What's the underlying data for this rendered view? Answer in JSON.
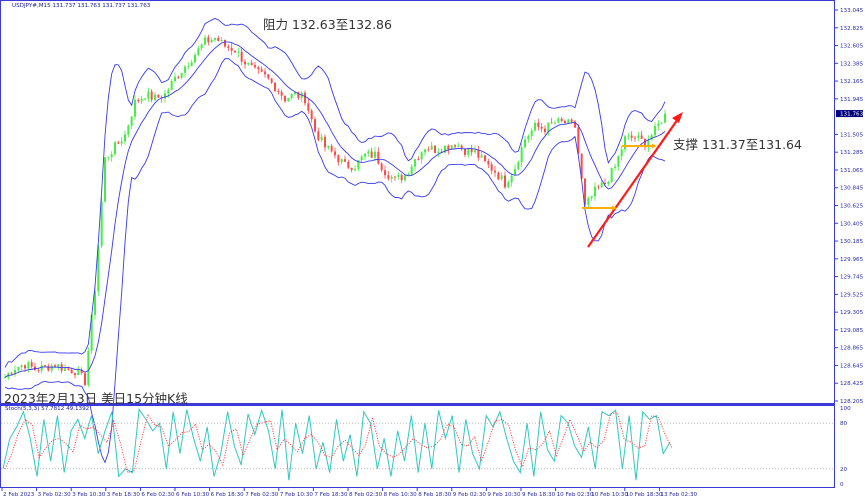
{
  "chart_data": {
    "type": "candlestick",
    "symbol_header": "USDJPY#,M15  131.737 131.763 131.737 131.763",
    "price_axis": [
      "133.045",
      "132.825",
      "132.605",
      "132.385",
      "132.165",
      "131.945",
      "131.505",
      "131.285",
      "131.065",
      "130.845",
      "130.625",
      "130.405",
      "130.185",
      "129.965",
      "129.745",
      "129.525",
      "129.305",
      "129.085",
      "128.865",
      "128.645",
      "128.425",
      "128.205"
    ],
    "ylim": [
      128.205,
      133.045
    ],
    "current_price": "131.763",
    "time_axis": [
      "2 Feb 2023",
      "3 Feb 02:30",
      "3 Feb 10:30",
      "3 Feb 18:30",
      "6 Feb 02:30",
      "6 Feb 10:30",
      "6 Feb 18:30",
      "7 Feb 02:30",
      "7 Feb 10:30",
      "7 Feb 18:30",
      "8 Feb 02:30",
      "8 Feb 10:30",
      "8 Feb 18:30",
      "9 Feb 02:30",
      "9 Feb 10:30",
      "9 Feb 18:30",
      "10 Feb 02:30",
      "10 Feb 10:30",
      "10 Feb 18:30",
      "13 Feb 02:30"
    ],
    "close": [
      128.5,
      128.62,
      128.66,
      128.6,
      128.62,
      128.66,
      128.6,
      128.58,
      128.45,
      129.6,
      131.2,
      131.35,
      131.5,
      131.9,
      132.0,
      131.95,
      132.0,
      132.2,
      132.35,
      132.5,
      132.65,
      132.7,
      132.6,
      132.55,
      132.4,
      132.28,
      132.22,
      132.1,
      131.95,
      132.0,
      131.95,
      131.55,
      131.35,
      131.25,
      131.12,
      131.12,
      131.25,
      131.25,
      131.05,
      130.94,
      131.0,
      131.2,
      131.35,
      131.32,
      131.35,
      131.4,
      131.31,
      131.28,
      131.15,
      131.05,
      130.9,
      131.1,
      131.45,
      131.6,
      131.58,
      131.65,
      131.65,
      131.6,
      130.6,
      130.8,
      130.9,
      131.1,
      131.45,
      131.47,
      131.4,
      131.55,
      131.763
    ],
    "indicators": "Bollinger Bands",
    "stochastic": {
      "label": "Stoch(5,3,3) 57.7812 49.1392",
      "levels": [
        20,
        80
      ],
      "axis": [
        "100",
        "80",
        "20",
        "0"
      ],
      "k": [
        20,
        60,
        75,
        95,
        60,
        10,
        85,
        30,
        90,
        15,
        70,
        85,
        60,
        90,
        40,
        70,
        95,
        10,
        20,
        15,
        98,
        85,
        70,
        80,
        20,
        95,
        40,
        98,
        60,
        30,
        75,
        10,
        40,
        95,
        50,
        25,
        92,
        65,
        97,
        70,
        20,
        98,
        5,
        80,
        40,
        90,
        20,
        55,
        15,
        85,
        30,
        65,
        10,
        95,
        80,
        20,
        60,
        10,
        70,
        30,
        90,
        15,
        80,
        20,
        97,
        60,
        90,
        15,
        85,
        40,
        20,
        90,
        75,
        95,
        60,
        30,
        15,
        80,
        10,
        95,
        45,
        30,
        90,
        80,
        50,
        35,
        75,
        20,
        95,
        90,
        97,
        20,
        90,
        5,
        95,
        85,
        90,
        40,
        55
      ]
    },
    "colors": {
      "bands": "#3a3af0",
      "bull": "#44ee44",
      "bear": "#ff4a4a",
      "k": "#30c8c0",
      "d": "#ff3030",
      "trend": "#ff1a1a",
      "support": "#ffb000",
      "axis": "#3a3ad8"
    }
  },
  "annotations": {
    "resistance": "阻力 132.63至132.86",
    "support": "支撑 131.37至131.64",
    "caption": "2023年2月13日 美日15分钟K线"
  }
}
